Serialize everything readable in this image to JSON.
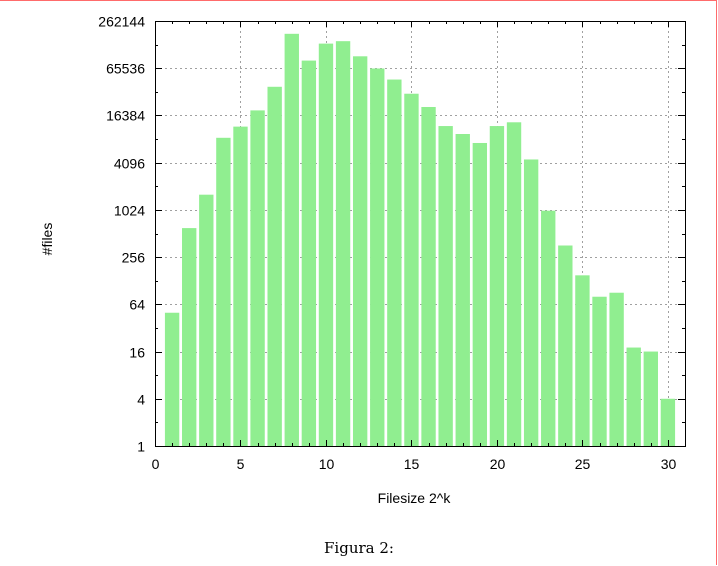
{
  "caption": "Figura 2:",
  "colors": {
    "bar": "#90ee90",
    "bar_stroke": "#7fdd7f",
    "grid": "#a0a0a0",
    "axis": "#000000"
  },
  "chart_data": {
    "type": "bar",
    "xlabel": "Filesize 2^k",
    "ylabel": "#files",
    "scale_y": "log2",
    "xlim": [
      0,
      31
    ],
    "ylim": [
      1,
      262144
    ],
    "xticks": [
      0,
      5,
      10,
      15,
      20,
      25,
      30
    ],
    "yticks": [
      1,
      4,
      16,
      64,
      256,
      1024,
      4096,
      16384,
      65536,
      262144
    ],
    "grid": true,
    "x": [
      1,
      2,
      3,
      4,
      5,
      6,
      7,
      8,
      9,
      10,
      11,
      12,
      13,
      14,
      15,
      16,
      17,
      18,
      19,
      20,
      21,
      22,
      23,
      24,
      25,
      26,
      27,
      28,
      29,
      30
    ],
    "values": [
      50,
      600,
      1600,
      8500,
      11800,
      19000,
      38000,
      180000,
      82000,
      135000,
      145000,
      93000,
      65000,
      47000,
      31000,
      21000,
      12000,
      9500,
      7300,
      12000,
      13400,
      4500,
      1000,
      360,
      150,
      80,
      90,
      18,
      16,
      4
    ]
  }
}
